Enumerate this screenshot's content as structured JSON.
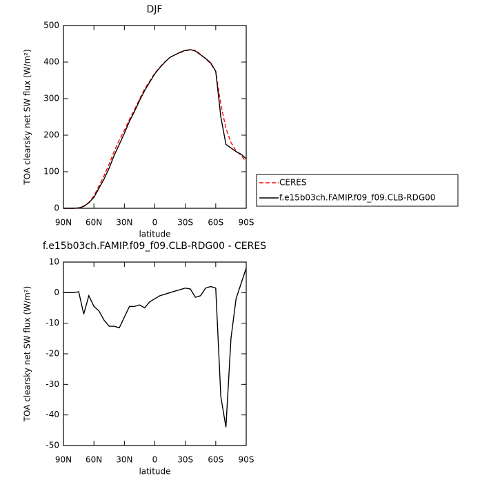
{
  "chart_data": [
    {
      "type": "line",
      "title": "DJF",
      "xlabel": "latitude",
      "ylabel": "TOA clearsky net SW flux (W/m²)",
      "x": [
        90,
        85,
        80,
        75,
        70,
        65,
        60,
        55,
        50,
        45,
        40,
        35,
        30,
        25,
        20,
        15,
        10,
        5,
        0,
        -5,
        -10,
        -15,
        -20,
        -25,
        -30,
        -35,
        -40,
        -45,
        -50,
        -55,
        -60,
        -65,
        -70,
        -75,
        -80,
        -85,
        -90
      ],
      "series": [
        {
          "name": "CERES",
          "color": "#ff0000",
          "dash": true,
          "values": [
            0,
            0,
            0,
            1,
            6,
            16,
            34,
            61,
            89,
            121,
            156,
            187,
            213,
            243,
            270,
            299,
            327,
            348,
            370,
            386,
            401,
            413,
            420,
            426,
            431,
            433,
            432,
            421,
            409,
            396,
            374,
            284,
            219,
            180,
            157,
            145,
            127
          ]
        },
        {
          "name": "f.e15b03ch.FAMIP.f09_f09.CLB-RDG00",
          "color": "#000000",
          "dash": false,
          "values": [
            0,
            0,
            0,
            1,
            5,
            15,
            30,
            55,
            80,
            110,
            145,
            175,
            205,
            238,
            265,
            295,
            322,
            345,
            368,
            385,
            400,
            413,
            420,
            427,
            432,
            434,
            430,
            420,
            410,
            398,
            375,
            250,
            175,
            165,
            155,
            148,
            135
          ]
        }
      ],
      "xlim": [
        90,
        -90
      ],
      "xticks": [
        {
          "value": 90,
          "label": "90N"
        },
        {
          "value": 60,
          "label": "60N"
        },
        {
          "value": 30,
          "label": "30N"
        },
        0,
        {
          "value": -30,
          "label": "30S"
        },
        {
          "value": -60,
          "label": "60S"
        },
        {
          "value": -90,
          "label": "90S"
        }
      ],
      "ylim": [
        0,
        500
      ],
      "yticks": [
        0,
        100,
        200,
        300,
        400,
        500
      ],
      "legend": "right"
    },
    {
      "type": "line",
      "title": "f.e15b03ch.FAMIP.f09_f09.CLB-RDG00 - CERES",
      "xlabel": "latitude",
      "ylabel": "TOA clearsky net SW flux (W/m²)",
      "x": [
        90,
        85,
        80,
        75,
        70,
        65,
        60,
        55,
        50,
        45,
        40,
        35,
        30,
        25,
        20,
        15,
        10,
        5,
        0,
        -5,
        -10,
        -15,
        -20,
        -25,
        -30,
        -35,
        -40,
        -45,
        -50,
        -55,
        -60,
        -65,
        -70,
        -75,
        -80,
        -85,
        -90
      ],
      "series": [
        {
          "color": "#000000",
          "dash": false,
          "values": [
            0,
            0,
            0,
            0.3,
            -7,
            -1,
            -4.5,
            -6,
            -9,
            -11,
            -11,
            -11.5,
            -8,
            -4.5,
            -4.5,
            -4,
            -5,
            -3,
            -2,
            -1,
            -0.5,
            0,
            0.5,
            1,
            1.5,
            1.2,
            -1.5,
            -1,
            1.5,
            2,
            1.5,
            -34,
            -44,
            -15,
            -2,
            3,
            8
          ]
        }
      ],
      "xlim": [
        90,
        -90
      ],
      "xticks": [
        {
          "value": 90,
          "label": "90N"
        },
        {
          "value": 60,
          "label": "60N"
        },
        {
          "value": 30,
          "label": "30N"
        },
        0,
        {
          "value": -30,
          "label": "30S"
        },
        {
          "value": -60,
          "label": "60S"
        },
        {
          "value": -90,
          "label": "90S"
        }
      ],
      "ylim": [
        -50,
        10
      ],
      "yticks": [
        -50,
        -40,
        -30,
        -20,
        -10,
        0,
        10
      ]
    }
  ]
}
